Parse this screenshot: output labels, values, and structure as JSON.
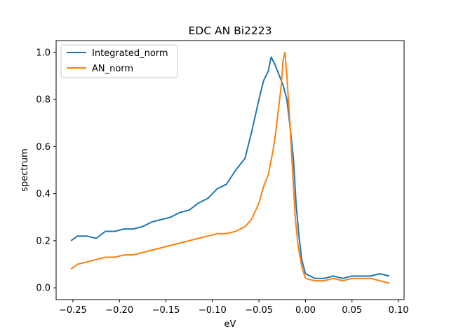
{
  "chart_data": {
    "type": "line",
    "title": "EDC AN Bi2223",
    "xlabel": "eV",
    "ylabel": "spectrum",
    "xlim": [
      -0.268,
      0.106
    ],
    "ylim": [
      -0.05,
      1.05
    ],
    "x_ticks": [
      "-0.25",
      "-0.20",
      "-0.15",
      "-0.10",
      "-0.05",
      "0.00",
      "0.05",
      "0.10"
    ],
    "x_tick_values": [
      -0.25,
      -0.2,
      -0.15,
      -0.1,
      -0.05,
      0.0,
      0.05,
      0.1
    ],
    "y_ticks": [
      "0.0",
      "0.2",
      "0.4",
      "0.6",
      "0.8",
      "1.0"
    ],
    "y_tick_values": [
      0.0,
      0.2,
      0.4,
      0.6,
      0.8,
      1.0
    ],
    "grid": false,
    "legend": "top-left",
    "series": [
      {
        "name": "Integrated_norm",
        "color": "#1f77b4",
        "points": [
          [
            -0.252,
            0.2
          ],
          [
            -0.245,
            0.22
          ],
          [
            -0.235,
            0.22
          ],
          [
            -0.225,
            0.21
          ],
          [
            -0.215,
            0.24
          ],
          [
            -0.205,
            0.24
          ],
          [
            -0.195,
            0.25
          ],
          [
            -0.185,
            0.25
          ],
          [
            -0.175,
            0.26
          ],
          [
            -0.165,
            0.28
          ],
          [
            -0.155,
            0.29
          ],
          [
            -0.145,
            0.3
          ],
          [
            -0.135,
            0.32
          ],
          [
            -0.125,
            0.33
          ],
          [
            -0.115,
            0.36
          ],
          [
            -0.105,
            0.38
          ],
          [
            -0.095,
            0.42
          ],
          [
            -0.085,
            0.44
          ],
          [
            -0.075,
            0.5
          ],
          [
            -0.065,
            0.55
          ],
          [
            -0.058,
            0.66
          ],
          [
            -0.05,
            0.8
          ],
          [
            -0.045,
            0.88
          ],
          [
            -0.04,
            0.92
          ],
          [
            -0.037,
            0.98
          ],
          [
            -0.033,
            0.95
          ],
          [
            -0.028,
            0.9
          ],
          [
            -0.024,
            0.86
          ],
          [
            -0.02,
            0.8
          ],
          [
            -0.017,
            0.7
          ],
          [
            -0.013,
            0.55
          ],
          [
            -0.01,
            0.35
          ],
          [
            -0.007,
            0.22
          ],
          [
            -0.004,
            0.12
          ],
          [
            0.0,
            0.06
          ],
          [
            0.01,
            0.04
          ],
          [
            0.02,
            0.04
          ],
          [
            0.03,
            0.05
          ],
          [
            0.04,
            0.04
          ],
          [
            0.05,
            0.05
          ],
          [
            0.06,
            0.05
          ],
          [
            0.07,
            0.05
          ],
          [
            0.08,
            0.06
          ],
          [
            0.09,
            0.05
          ]
        ]
      },
      {
        "name": "AN_norm",
        "color": "#ff7f0e",
        "points": [
          [
            -0.252,
            0.08
          ],
          [
            -0.245,
            0.1
          ],
          [
            -0.235,
            0.11
          ],
          [
            -0.225,
            0.12
          ],
          [
            -0.215,
            0.13
          ],
          [
            -0.205,
            0.13
          ],
          [
            -0.195,
            0.14
          ],
          [
            -0.185,
            0.14
          ],
          [
            -0.175,
            0.15
          ],
          [
            -0.165,
            0.16
          ],
          [
            -0.155,
            0.17
          ],
          [
            -0.145,
            0.18
          ],
          [
            -0.135,
            0.19
          ],
          [
            -0.125,
            0.2
          ],
          [
            -0.115,
            0.21
          ],
          [
            -0.105,
            0.22
          ],
          [
            -0.095,
            0.23
          ],
          [
            -0.085,
            0.23
          ],
          [
            -0.075,
            0.24
          ],
          [
            -0.065,
            0.26
          ],
          [
            -0.058,
            0.29
          ],
          [
            -0.05,
            0.36
          ],
          [
            -0.045,
            0.43
          ],
          [
            -0.04,
            0.48
          ],
          [
            -0.035,
            0.58
          ],
          [
            -0.032,
            0.66
          ],
          [
            -0.029,
            0.76
          ],
          [
            -0.026,
            0.86
          ],
          [
            -0.024,
            0.97
          ],
          [
            -0.022,
            1.0
          ],
          [
            -0.02,
            0.9
          ],
          [
            -0.017,
            0.72
          ],
          [
            -0.014,
            0.5
          ],
          [
            -0.011,
            0.3
          ],
          [
            -0.008,
            0.18
          ],
          [
            -0.004,
            0.09
          ],
          [
            0.0,
            0.04
          ],
          [
            0.01,
            0.03
          ],
          [
            0.02,
            0.03
          ],
          [
            0.03,
            0.04
          ],
          [
            0.04,
            0.03
          ],
          [
            0.05,
            0.04
          ],
          [
            0.06,
            0.04
          ],
          [
            0.07,
            0.04
          ],
          [
            0.08,
            0.03
          ],
          [
            0.09,
            0.02
          ]
        ]
      }
    ]
  }
}
